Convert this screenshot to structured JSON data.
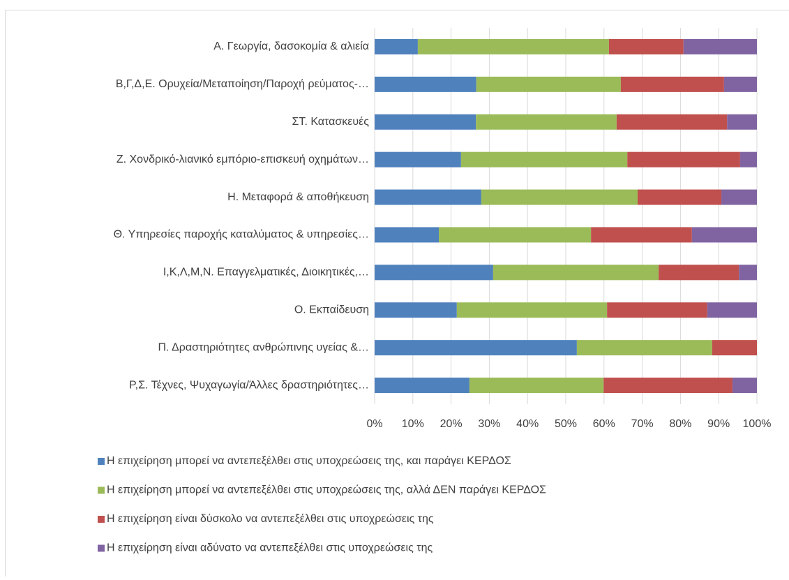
{
  "chart_data": {
    "type": "stacked-bar-horizontal",
    "categories": [
      "Α. Γεωργία, δασοκομία & αλιεία",
      "Β,Γ,Δ,Ε. Ορυχεία/Μεταποίηση/Παροχή ρεύματος-…",
      "ΣΤ. Κατασκευές",
      "Ζ. Χονδρικό-λιανικό εμπόριο-επισκευή οχημάτων…",
      "Η. Μεταφορά & αποθήκευση",
      "Θ. Υπηρεσίες παροχής καταλύματος & υπηρεσίες…",
      "Ι,Κ,Λ,Μ,Ν. Επαγγελματικές, Διοικητικές,…",
      "Ο. Εκπαίδευση",
      "Π. Δραστηριότητες ανθρώπινης υγείας &…",
      "Ρ,Σ. Τέχνες, Ψυχαγωγία/Άλλες δραστηριότητες…"
    ],
    "series": [
      {
        "name": "Η επιχείρηση μπορεί να αντεπεξέλθει στις υποχρεώσεις της, και παράγει ΚΕΡΔΟΣ",
        "color": "#4f81bd",
        "values": [
          11.3,
          26.6,
          26.5,
          22.6,
          27.9,
          16.8,
          31.0,
          21.5,
          52.9,
          24.8
        ]
      },
      {
        "name": "Η επιχείρηση μπορεί να αντεπεξέλθει στις υποχρεώσεις της, αλλά ΔΕΝ παράγει ΚΕΡΔΟΣ",
        "color": "#9bbb59",
        "values": [
          50.0,
          37.8,
          36.8,
          43.5,
          40.9,
          39.8,
          43.3,
          39.3,
          35.4,
          35.1
        ]
      },
      {
        "name": "Η επιχείρηση είναι δύσκολο να αντεπεξέλθει στις υποχρεώσεις της",
        "color": "#c0504d",
        "values": [
          19.5,
          27.0,
          28.9,
          29.5,
          21.9,
          26.4,
          21.0,
          26.2,
          11.7,
          33.7
        ]
      },
      {
        "name": "Η επιχείρηση είναι αδύνατο να αντεπεξέλθει στις υποχρεώσεις της",
        "color": "#8064a2",
        "values": [
          19.2,
          8.6,
          7.8,
          4.4,
          9.3,
          17.0,
          4.7,
          13.0,
          0,
          6.4
        ]
      }
    ],
    "xlim": [
      0,
      100
    ],
    "xticks": [
      {
        "value": 0,
        "label": "0%"
      },
      {
        "value": 10,
        "label": "10%"
      },
      {
        "value": 20,
        "label": "20%"
      },
      {
        "value": 30,
        "label": "30%"
      },
      {
        "value": 40,
        "label": "40%"
      },
      {
        "value": 50,
        "label": "50%"
      },
      {
        "value": 60,
        "label": "60%"
      },
      {
        "value": 70,
        "label": "70%"
      },
      {
        "value": 80,
        "label": "80%"
      },
      {
        "value": 90,
        "label": "90%"
      },
      {
        "value": 100,
        "label": "100%"
      }
    ],
    "grid": true,
    "legend": "bottom"
  }
}
